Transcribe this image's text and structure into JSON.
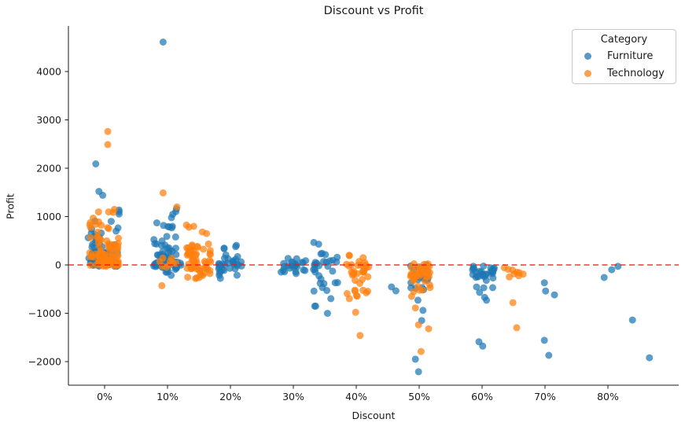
{
  "chart_data": {
    "type": "scatter",
    "title": "Discount vs Profit",
    "xlabel": "Discount",
    "ylabel": "Profit",
    "grid": false,
    "background": "#ffffff",
    "xlim": [
      -5.75,
      91.25
    ],
    "ylim": [
      -2488,
      4943
    ],
    "x_ticks": [
      {
        "value": 0,
        "label": "0%"
      },
      {
        "value": 10,
        "label": "10%"
      },
      {
        "value": 20,
        "label": "20%"
      },
      {
        "value": 30,
        "label": "30%"
      },
      {
        "value": 40,
        "label": "40%"
      },
      {
        "value": 50,
        "label": "50%"
      },
      {
        "value": 60,
        "label": "60%"
      },
      {
        "value": 70,
        "label": "70%"
      },
      {
        "value": 80,
        "label": "80%"
      }
    ],
    "y_ticks": [
      {
        "value": 4000,
        "label": "4000"
      },
      {
        "value": 3000,
        "label": "3000"
      },
      {
        "value": 2000,
        "label": "2000"
      },
      {
        "value": 1000,
        "label": "1000"
      },
      {
        "value": 0,
        "label": "0"
      },
      {
        "value": -1000,
        "label": "−1000"
      },
      {
        "value": -2000,
        "label": "−2000"
      }
    ],
    "zero_line": {
      "value": 0,
      "color": "#ee1111",
      "dash": "7 4.5"
    },
    "marker": {
      "radius": 4.5,
      "opacity": 0.72
    },
    "legend": {
      "title": "Category",
      "position": "upper right",
      "entries": [
        {
          "label": "Furniture",
          "color": "#1f77b4"
        },
        {
          "label": "Technology",
          "color": "#ff7f0e"
        }
      ]
    },
    "series": [
      {
        "name": "Furniture",
        "color": "#1f77b4",
        "clusters": [
          {
            "x": -0.2,
            "jitter": 2.5,
            "bands": [
              [
                -30,
                80,
                34
              ],
              [
                80,
                260,
                24
              ],
              [
                260,
                520,
                15
              ],
              [
                520,
                820,
                9
              ],
              [
                820,
                1150,
                5
              ]
            ]
          },
          {
            "x": 10.0,
            "jitter": 2.2,
            "bands": [
              [
                -240,
                -60,
                7
              ],
              [
                -60,
                60,
                22
              ],
              [
                60,
                260,
                20
              ],
              [
                260,
                540,
                12
              ],
              [
                540,
                860,
                7
              ],
              [
                860,
                1230,
                5
              ]
            ]
          },
          {
            "x": 20.0,
            "jitter": 2.0,
            "bands": [
              [
                -290,
                -90,
                7
              ],
              [
                -90,
                60,
                15
              ],
              [
                60,
                220,
                8
              ],
              [
                220,
                410,
                4
              ]
            ]
          },
          {
            "x": 30.0,
            "jitter": 2.0,
            "bands": [
              [
                -180,
                -40,
                9
              ],
              [
                -40,
                150,
                15
              ]
            ]
          },
          {
            "x": 35.2,
            "jitter": 2.0,
            "bands": [
              [
                -120,
                110,
                13
              ],
              [
                -390,
                -120,
                8
              ],
              [
                110,
                340,
                4
              ],
              [
                340,
                580,
                2
              ],
              [
                -780,
                -390,
                4
              ],
              [
                -1200,
                -800,
                3
              ]
            ]
          },
          {
            "x": 50.0,
            "jitter": 1.4,
            "bands": [
              [
                -330,
                10,
                15
              ],
              [
                -550,
                -330,
                5
              ]
            ]
          },
          {
            "x": 60.2,
            "jitter": 1.8,
            "bands": [
              [
                -260,
                -10,
                27
              ],
              [
                -480,
                -260,
                5
              ]
            ]
          }
        ],
        "points": [
          [
            9.3,
            4610
          ],
          [
            -1.4,
            2090
          ],
          [
            -0.9,
            1520
          ],
          [
            -0.3,
            1440
          ],
          [
            45.6,
            -455
          ],
          [
            46.3,
            -537
          ],
          [
            49.8,
            -730
          ],
          [
            50.6,
            -940
          ],
          [
            50.4,
            -1150
          ],
          [
            49.4,
            -1950
          ],
          [
            49.9,
            -2210
          ],
          [
            59.6,
            -570
          ],
          [
            60.4,
            -670
          ],
          [
            60.7,
            -730
          ],
          [
            59.5,
            -1590
          ],
          [
            60.1,
            -1680
          ],
          [
            69.9,
            -370
          ],
          [
            70.1,
            -540
          ],
          [
            71.5,
            -620
          ],
          [
            69.9,
            -1560
          ],
          [
            70.6,
            -1870
          ],
          [
            79.4,
            -260
          ],
          [
            80.6,
            -100
          ],
          [
            81.6,
            -30
          ],
          [
            83.9,
            -1140
          ],
          [
            86.6,
            -1920
          ]
        ]
      },
      {
        "name": "Technology",
        "color": "#ff7f0e",
        "clusters": [
          {
            "x": -0.1,
            "jitter": 2.3,
            "bands": [
              [
                -30,
                80,
                30
              ],
              [
                80,
                260,
                26
              ],
              [
                260,
                560,
                20
              ],
              [
                560,
                900,
                12
              ],
              [
                900,
                1260,
                5
              ]
            ]
          },
          {
            "x": 10.2,
            "jitter": 1.6,
            "bands": [
              [
                -90,
                160,
                9
              ]
            ]
          },
          {
            "x": 15.0,
            "jitter": 2.0,
            "bands": [
              [
                -290,
                -90,
                11
              ],
              [
                -90,
                110,
                21
              ],
              [
                110,
                310,
                15
              ],
              [
                310,
                560,
                9
              ],
              [
                560,
                830,
                5
              ]
            ]
          },
          {
            "x": 40.2,
            "jitter": 1.8,
            "bands": [
              [
                -660,
                -400,
                8
              ],
              [
                -400,
                -140,
                11
              ],
              [
                -140,
                60,
                13
              ],
              [
                60,
                220,
                4
              ]
            ]
          },
          {
            "x": 50.2,
            "jitter": 1.6,
            "bands": [
              [
                -310,
                30,
                30
              ],
              [
                -560,
                -310,
                8
              ]
            ]
          },
          {
            "x": 65.0,
            "jitter": 1.6,
            "bands": [
              [
                -290,
                -50,
                9
              ]
            ]
          }
        ],
        "points": [
          [
            0.5,
            2760
          ],
          [
            0.5,
            2490
          ],
          [
            9.3,
            1490
          ],
          [
            11.5,
            1200
          ],
          [
            9.1,
            -430
          ],
          [
            38.9,
            -700
          ],
          [
            39.9,
            -980
          ],
          [
            40.6,
            -1460
          ],
          [
            48.8,
            -650
          ],
          [
            49.4,
            -890
          ],
          [
            49.9,
            -1240
          ],
          [
            51.5,
            -1320
          ],
          [
            50.3,
            -1790
          ],
          [
            64.9,
            -780
          ],
          [
            65.5,
            -1300
          ]
        ]
      }
    ]
  }
}
